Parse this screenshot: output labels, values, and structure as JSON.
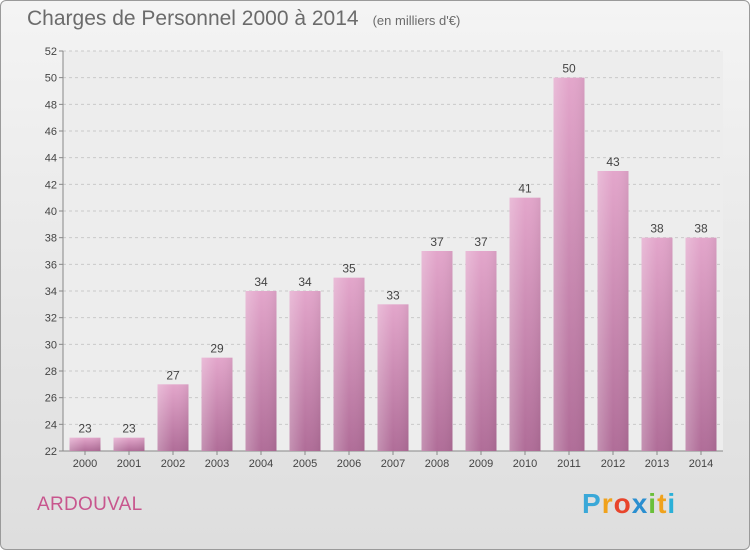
{
  "chart_data": {
    "type": "bar",
    "title": "Charges de Personnel 2000 à 2014",
    "subtitle": "(en milliers d'€)",
    "categories": [
      "2000",
      "2001",
      "2002",
      "2003",
      "2004",
      "2005",
      "2006",
      "2007",
      "2008",
      "2009",
      "2010",
      "2011",
      "2012",
      "2013",
      "2014"
    ],
    "values": [
      23,
      23,
      27,
      29,
      34,
      34,
      35,
      33,
      37,
      37,
      41,
      50,
      43,
      38,
      38
    ],
    "ylim": [
      22,
      52
    ],
    "yticks": [
      22,
      24,
      26,
      28,
      30,
      32,
      34,
      36,
      38,
      40,
      42,
      44,
      46,
      48,
      50,
      52
    ],
    "grid": true,
    "bar_color": "#d98cb7"
  },
  "commune": "ARDOUVAL",
  "logo": {
    "letters": [
      "P",
      "r",
      "o",
      "x",
      "i",
      "t",
      "i"
    ],
    "colors": [
      "#3aa8d8",
      "#f0a21c",
      "#e8452c",
      "#2b8fd0",
      "#6abf3a",
      "#f0a21c",
      "#2bb0d8"
    ]
  }
}
